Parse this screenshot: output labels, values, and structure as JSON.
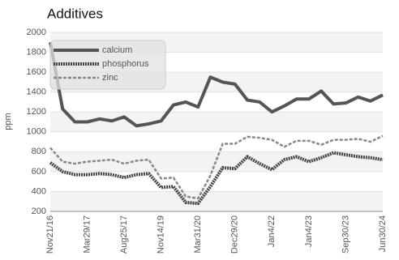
{
  "chart_data": {
    "type": "line",
    "title": "Additives",
    "y_label": "ppm",
    "categories": [
      "Nov21/16",
      null,
      null,
      "Mar29/17",
      null,
      null,
      "Aug25/17",
      null,
      null,
      "Nov14/19",
      null,
      null,
      "Mar31/20",
      null,
      null,
      "Dec29/20",
      null,
      null,
      "Jan4/22",
      null,
      null,
      "Jan4/23",
      null,
      null,
      "Sep30/23",
      null,
      null,
      "Jun30/24"
    ],
    "series": [
      {
        "name": "calcium",
        "color": "#555555",
        "dash": "solid",
        "values": [
          1900,
          1230,
          1100,
          1100,
          1130,
          1110,
          1150,
          1060,
          1080,
          1110,
          1270,
          1300,
          1250,
          1550,
          1500,
          1480,
          1320,
          1300,
          1200,
          1260,
          1330,
          1330,
          1410,
          1280,
          1290,
          1350,
          1310,
          1370
        ]
      },
      {
        "name": "phosphorus",
        "color": "#444444",
        "dash": "dotted",
        "values": [
          690,
          600,
          570,
          570,
          580,
          570,
          540,
          570,
          580,
          440,
          450,
          290,
          280,
          450,
          640,
          630,
          750,
          680,
          620,
          720,
          750,
          700,
          740,
          790,
          770,
          750,
          740,
          720
        ]
      },
      {
        "name": "zinc",
        "color": "#888888",
        "dash": "dashed",
        "values": [
          840,
          700,
          680,
          700,
          710,
          720,
          680,
          710,
          720,
          530,
          540,
          350,
          330,
          560,
          880,
          880,
          950,
          940,
          920,
          850,
          910,
          910,
          870,
          920,
          920,
          930,
          900,
          960
        ]
      }
    ],
    "ylim": [
      200,
      2000
    ],
    "yticks": [
      200,
      400,
      600,
      800,
      1000,
      1200,
      1400,
      1600,
      1800,
      2000
    ],
    "grid": true,
    "legend": "top-left"
  }
}
